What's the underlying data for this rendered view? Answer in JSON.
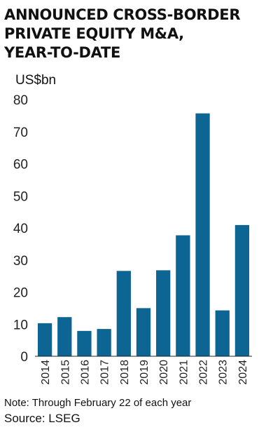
{
  "header": {
    "title_lines": [
      "ANNOUNCED CROSS-BORDER",
      "PRIVATE EQUITY M&A,",
      "YEAR-TO-DATE"
    ]
  },
  "chart_data": {
    "type": "bar",
    "unit_label": "US$bn",
    "categories": [
      "2014",
      "2015",
      "2016",
      "2017",
      "2018",
      "2019",
      "2020",
      "2021",
      "2022",
      "2023",
      "2024"
    ],
    "values": [
      10.3,
      12.2,
      7.9,
      8.5,
      26.6,
      15.0,
      26.8,
      37.7,
      75.7,
      14.3,
      40.9
    ],
    "ylim": [
      0,
      80
    ],
    "yticks": [
      0,
      10,
      20,
      30,
      40,
      50,
      60,
      70,
      80
    ],
    "bar_color": "#0d6594",
    "grid": false
  },
  "footer": {
    "note": "Note: Through February 22 of each year",
    "source": "Source: LSEG"
  }
}
